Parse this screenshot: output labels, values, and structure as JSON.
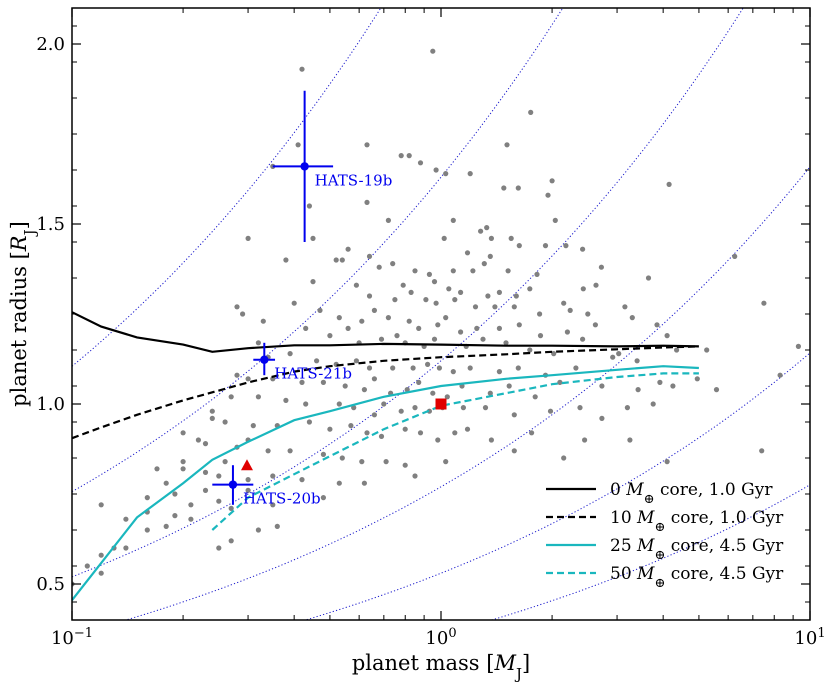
{
  "chart_data": {
    "type": "scatter",
    "xscale": "log",
    "xlim": [
      0.1,
      10
    ],
    "ylim": [
      0.4,
      2.1
    ],
    "xlabel": "planet mass [M_J]",
    "ylabel": "planet radius [R_J]",
    "xticks": [
      {
        "value": 0.1,
        "base": "10",
        "exp": "−1"
      },
      {
        "value": 1,
        "base": "10",
        "exp": "0"
      },
      {
        "value": 10,
        "base": "10",
        "exp": "1"
      }
    ],
    "yticks": [
      {
        "value": 0.5,
        "label": "0.5"
      },
      {
        "value": 1.0,
        "label": "1.0"
      },
      {
        "value": 1.5,
        "label": "1.5"
      },
      {
        "value": 2.0,
        "label": "2.0"
      }
    ],
    "known_planets": [
      [
        0.42,
        1.93
      ],
      [
        0.95,
        1.98
      ],
      [
        0.41,
        1.72
      ],
      [
        0.35,
        1.66
      ],
      [
        0.63,
        1.72
      ],
      [
        0.44,
        1.55
      ],
      [
        0.78,
        1.69
      ],
      [
        0.82,
        1.69
      ],
      [
        0.88,
        1.67
      ],
      [
        0.97,
        1.65
      ],
      [
        1.51,
        1.72
      ],
      [
        1.75,
        1.81
      ],
      [
        1.03,
        1.64
      ],
      [
        1.2,
        1.64
      ],
      [
        1.48,
        1.6
      ],
      [
        1.62,
        1.6
      ],
      [
        2.0,
        1.62
      ],
      [
        1.95,
        1.58
      ],
      [
        0.63,
        1.56
      ],
      [
        0.72,
        1.51
      ],
      [
        1.08,
        1.51
      ],
      [
        1.28,
        1.48
      ],
      [
        1.33,
        1.49
      ],
      [
        1.37,
        1.46
      ],
      [
        1.55,
        1.46
      ],
      [
        2.04,
        1.51
      ],
      [
        1.02,
        1.46
      ],
      [
        1.18,
        1.42
      ],
      [
        1.36,
        1.41
      ],
      [
        1.63,
        1.44
      ],
      [
        1.92,
        1.44
      ],
      [
        2.18,
        1.44
      ],
      [
        4.15,
        1.61
      ],
      [
        0.3,
        1.46
      ],
      [
        0.45,
        1.46
      ],
      [
        0.56,
        1.43
      ],
      [
        0.64,
        1.41
      ],
      [
        0.74,
        1.39
      ],
      [
        0.85,
        1.37
      ],
      [
        1.08,
        1.37
      ],
      [
        1.22,
        1.37
      ],
      [
        1.31,
        1.39
      ],
      [
        1.52,
        1.37
      ],
      [
        1.82,
        1.36
      ],
      [
        2.42,
        1.43
      ],
      [
        2.72,
        1.38
      ],
      [
        0.38,
        1.4
      ],
      [
        0.52,
        1.4
      ],
      [
        0.54,
        1.4
      ],
      [
        0.68,
        1.38
      ],
      [
        0.79,
        1.33
      ],
      [
        0.93,
        1.36
      ],
      [
        0.96,
        1.34
      ],
      [
        1.05,
        1.32
      ],
      [
        1.13,
        1.31
      ],
      [
        1.34,
        1.3
      ],
      [
        1.44,
        1.31
      ],
      [
        1.6,
        1.3
      ],
      [
        1.74,
        1.32
      ],
      [
        2.15,
        1.28
      ],
      [
        2.43,
        1.32
      ],
      [
        2.63,
        1.33
      ],
      [
        3.65,
        1.35
      ],
      [
        6.25,
        1.41
      ],
      [
        0.45,
        1.34
      ],
      [
        0.59,
        1.33
      ],
      [
        0.64,
        1.3
      ],
      [
        0.75,
        1.29
      ],
      [
        0.83,
        1.31
      ],
      [
        0.91,
        1.29
      ],
      [
        0.97,
        1.28
      ],
      [
        1.09,
        1.29
      ],
      [
        1.24,
        1.27
      ],
      [
        1.4,
        1.27
      ],
      [
        1.58,
        1.27
      ],
      [
        1.85,
        1.25
      ],
      [
        2.24,
        1.26
      ],
      [
        2.5,
        1.25
      ],
      [
        3.15,
        1.27
      ],
      [
        0.28,
        1.27
      ],
      [
        0.29,
        1.25
      ],
      [
        0.4,
        1.28
      ],
      [
        0.47,
        1.26
      ],
      [
        0.53,
        1.24
      ],
      [
        0.61,
        1.23
      ],
      [
        0.66,
        1.26
      ],
      [
        0.72,
        1.24
      ],
      [
        0.82,
        1.23
      ],
      [
        0.87,
        1.21
      ],
      [
        0.98,
        1.22
      ],
      [
        1.03,
        1.24
      ],
      [
        1.13,
        1.2
      ],
      [
        1.25,
        1.21
      ],
      [
        1.44,
        1.21
      ],
      [
        1.63,
        1.22
      ],
      [
        1.86,
        1.19
      ],
      [
        2.2,
        1.2
      ],
      [
        2.62,
        1.22
      ],
      [
        3.3,
        1.24
      ],
      [
        3.85,
        1.22
      ],
      [
        7.5,
        1.28
      ],
      [
        0.33,
        1.23
      ],
      [
        0.43,
        1.21
      ],
      [
        0.5,
        1.19
      ],
      [
        0.56,
        1.21
      ],
      [
        0.6,
        1.17
      ],
      [
        0.69,
        1.18
      ],
      [
        0.76,
        1.19
      ],
      [
        0.8,
        1.17
      ],
      [
        0.9,
        1.16
      ],
      [
        0.96,
        1.18
      ],
      [
        1.17,
        1.16
      ],
      [
        1.3,
        1.18
      ],
      [
        1.5,
        1.17
      ],
      [
        1.74,
        1.15
      ],
      [
        2.02,
        1.14
      ],
      [
        2.42,
        1.18
      ],
      [
        2.92,
        1.13
      ],
      [
        4.1,
        1.19
      ],
      [
        0.32,
        1.17
      ],
      [
        0.34,
        1.13
      ],
      [
        0.39,
        1.14
      ],
      [
        0.46,
        1.12
      ],
      [
        0.52,
        1.11
      ],
      [
        0.59,
        1.12
      ],
      [
        0.64,
        1.1
      ],
      [
        0.74,
        1.1
      ],
      [
        0.84,
        1.1
      ],
      [
        0.92,
        1.11
      ],
      [
        0.99,
        1.1
      ],
      [
        1.08,
        1.09
      ],
      [
        1.2,
        1.1
      ],
      [
        1.44,
        1.09
      ],
      [
        1.62,
        1.1
      ],
      [
        1.92,
        1.08
      ],
      [
        2.32,
        1.1
      ],
      [
        3.03,
        1.14
      ],
      [
        3.4,
        1.12
      ],
      [
        4.35,
        1.15
      ],
      [
        5.25,
        1.15
      ],
      [
        9.3,
        1.16
      ],
      [
        0.28,
        1.08
      ],
      [
        0.3,
        1.07
      ],
      [
        0.35,
        1.07
      ],
      [
        0.42,
        1.06
      ],
      [
        0.48,
        1.06
      ],
      [
        0.55,
        1.05
      ],
      [
        0.62,
        1.04
      ],
      [
        0.66,
        1.07
      ],
      [
        0.73,
        1.03
      ],
      [
        0.81,
        1.04
      ],
      [
        0.87,
        1.06
      ],
      [
        0.95,
        1.03
      ],
      [
        1.04,
        1.02
      ],
      [
        1.14,
        1.05
      ],
      [
        1.36,
        1.03
      ],
      [
        1.53,
        1.05
      ],
      [
        1.8,
        1.02
      ],
      [
        2.1,
        1.06
      ],
      [
        2.73,
        1.05
      ],
      [
        3.42,
        1.04
      ],
      [
        3.92,
        1.06
      ],
      [
        4.95,
        1.07
      ],
      [
        5.58,
        1.04
      ],
      [
        8.3,
        1.08
      ],
      [
        0.27,
        1.02
      ],
      [
        0.32,
        1.02
      ],
      [
        0.38,
        1.01
      ],
      [
        0.43,
        1.0
      ],
      [
        0.53,
        1.0
      ],
      [
        0.58,
        0.99
      ],
      [
        0.66,
        0.97
      ],
      [
        0.7,
        1.0
      ],
      [
        0.78,
        0.98
      ],
      [
        0.85,
        0.99
      ],
      [
        0.93,
        0.98
      ],
      [
        1.01,
        0.99
      ],
      [
        1.15,
        0.99
      ],
      [
        1.32,
        0.99
      ],
      [
        1.58,
        0.97
      ],
      [
        1.98,
        0.98
      ],
      [
        2.38,
        0.99
      ],
      [
        2.73,
        0.96
      ],
      [
        3.2,
        0.99
      ],
      [
        3.76,
        1.0
      ],
      [
        4.25,
        1.05
      ],
      [
        0.24,
        0.96
      ],
      [
        0.26,
        0.95
      ],
      [
        0.31,
        0.94
      ],
      [
        0.36,
        0.94
      ],
      [
        0.44,
        0.95
      ],
      [
        0.5,
        0.93
      ],
      [
        0.57,
        0.94
      ],
      [
        0.63,
        0.92
      ],
      [
        0.69,
        0.91
      ],
      [
        0.8,
        0.93
      ],
      [
        0.88,
        0.92
      ],
      [
        0.98,
        0.9
      ],
      [
        1.09,
        0.92
      ],
      [
        1.18,
        0.93
      ],
      [
        1.37,
        0.9
      ],
      [
        1.76,
        0.92
      ],
      [
        2.45,
        0.9
      ],
      [
        0.2,
        0.92
      ],
      [
        0.23,
        0.89
      ],
      [
        0.28,
        0.88
      ],
      [
        0.34,
        0.87
      ],
      [
        0.39,
        0.87
      ],
      [
        0.48,
        0.86
      ],
      [
        0.54,
        0.85
      ],
      [
        0.61,
        0.84
      ],
      [
        0.71,
        0.84
      ],
      [
        0.8,
        0.83
      ],
      [
        1.03,
        0.84
      ],
      [
        1.58,
        0.87
      ],
      [
        2.15,
        0.85
      ],
      [
        3.25,
        0.9
      ],
      [
        4.1,
        0.84
      ],
      [
        7.4,
        0.87
      ],
      [
        0.17,
        0.82
      ],
      [
        0.2,
        0.82
      ],
      [
        0.25,
        0.8
      ],
      [
        0.3,
        0.79
      ],
      [
        0.35,
        0.8
      ],
      [
        0.42,
        0.79
      ],
      [
        0.53,
        0.78
      ],
      [
        0.62,
        0.78
      ],
      [
        0.85,
        0.8
      ],
      [
        0.23,
        0.76
      ],
      [
        0.3,
        0.76
      ],
      [
        0.25,
        0.73
      ],
      [
        0.27,
        0.71
      ],
      [
        0.21,
        0.72
      ],
      [
        0.35,
        0.72
      ],
      [
        0.48,
        0.74
      ],
      [
        0.12,
        0.72
      ],
      [
        0.16,
        0.7
      ],
      [
        0.19,
        0.69
      ],
      [
        0.21,
        0.68
      ],
      [
        0.36,
        0.66
      ],
      [
        0.27,
        0.62
      ],
      [
        0.16,
        0.65
      ],
      [
        0.14,
        0.6
      ],
      [
        0.25,
        0.6
      ],
      [
        0.11,
        0.55
      ],
      [
        0.1,
        0.5
      ],
      [
        0.12,
        0.58
      ],
      [
        0.14,
        0.68
      ],
      [
        0.18,
        0.66
      ],
      [
        0.16,
        0.74
      ],
      [
        0.26,
        0.84
      ],
      [
        0.32,
        0.65
      ],
      [
        0.12,
        0.53
      ],
      [
        0.19,
        0.75
      ],
      [
        0.23,
        0.81
      ],
      [
        0.3,
        0.9
      ],
      [
        0.18,
        0.78
      ],
      [
        0.24,
        0.98
      ],
      [
        0.13,
        0.6
      ],
      [
        0.2,
        0.84
      ],
      [
        0.22,
        0.9
      ]
    ],
    "hats_planets": [
      {
        "name": "HATS-19b",
        "x": 0.427,
        "y": 1.66,
        "x_range": [
          0.35,
          0.51
        ],
        "y_range": [
          1.45,
          1.87
        ]
      },
      {
        "name": "HATS-21b",
        "x": 0.332,
        "y": 1.123,
        "x_range": [
          0.31,
          0.355
        ],
        "y_range": [
          1.08,
          1.17
        ]
      },
      {
        "name": "HATS-20b",
        "x": 0.273,
        "y": 0.776,
        "x_range": [
          0.24,
          0.31
        ],
        "y_range": [
          0.72,
          0.83
        ]
      }
    ],
    "red_triangle": {
      "x": 0.298,
      "y": 0.83
    },
    "red_square": {
      "x": 1.0,
      "y": 1.0
    },
    "models": [
      {
        "name": "0 M⊕ core, 1.0 Gyr",
        "label_prefix": "0",
        "label_suffix": " core, 1.0 Gyr",
        "color": "#000000",
        "dash": "solid",
        "x": [
          0.1,
          0.12,
          0.15,
          0.2,
          0.24,
          0.3,
          0.4,
          0.5,
          0.7,
          1.0,
          1.5,
          2.0,
          3.0,
          4.0,
          5.0
        ],
        "y": [
          1.255,
          1.215,
          1.185,
          1.165,
          1.145,
          1.155,
          1.163,
          1.163,
          1.167,
          1.165,
          1.162,
          1.162,
          1.16,
          1.162,
          1.16
        ]
      },
      {
        "name": "10 M⊕ core, 1.0 Gyr",
        "label_prefix": "10",
        "label_suffix": " core, 1.0 Gyr",
        "color": "#000000",
        "dash": "dashed",
        "x": [
          0.1,
          0.12,
          0.15,
          0.2,
          0.3,
          0.4,
          0.5,
          0.7,
          1.0,
          1.5,
          2.0,
          3.0,
          4.0,
          5.0
        ],
        "y": [
          0.905,
          0.935,
          0.97,
          1.01,
          1.06,
          1.09,
          1.105,
          1.12,
          1.13,
          1.138,
          1.145,
          1.152,
          1.157,
          1.16
        ]
      },
      {
        "name": "25 M⊕ core, 4.5 Gyr",
        "label_prefix": "25",
        "label_suffix": " core, 4.5 Gyr",
        "color": "#1ab7be",
        "dash": "solid",
        "x": [
          0.1,
          0.15,
          0.2,
          0.24,
          0.3,
          0.4,
          0.5,
          0.7,
          1.0,
          1.5,
          2.0,
          3.0,
          4.0,
          5.0
        ],
        "y": [
          0.455,
          0.685,
          0.78,
          0.845,
          0.895,
          0.955,
          0.98,
          1.02,
          1.05,
          1.07,
          1.08,
          1.095,
          1.105,
          1.1
        ]
      },
      {
        "name": "50 M⊕ core, 4.5 Gyr",
        "label_prefix": "50",
        "label_suffix": " core, 4.5 Gyr",
        "color": "#1ab7be",
        "dash": "dashed",
        "x": [
          0.24,
          0.3,
          0.4,
          0.5,
          0.7,
          1.0,
          1.5,
          2.0,
          3.0,
          4.0,
          5.0
        ],
        "y": [
          0.65,
          0.74,
          0.805,
          0.855,
          0.93,
          0.995,
          1.03,
          1.055,
          1.075,
          1.085,
          1.085
        ]
      }
    ],
    "density_curves": {
      "color": "#1a1acc",
      "coefficients": [
        0.36,
        0.53,
        0.77,
        1.12,
        1.63,
        2.38
      ]
    },
    "legend_placement": "lower-right"
  }
}
